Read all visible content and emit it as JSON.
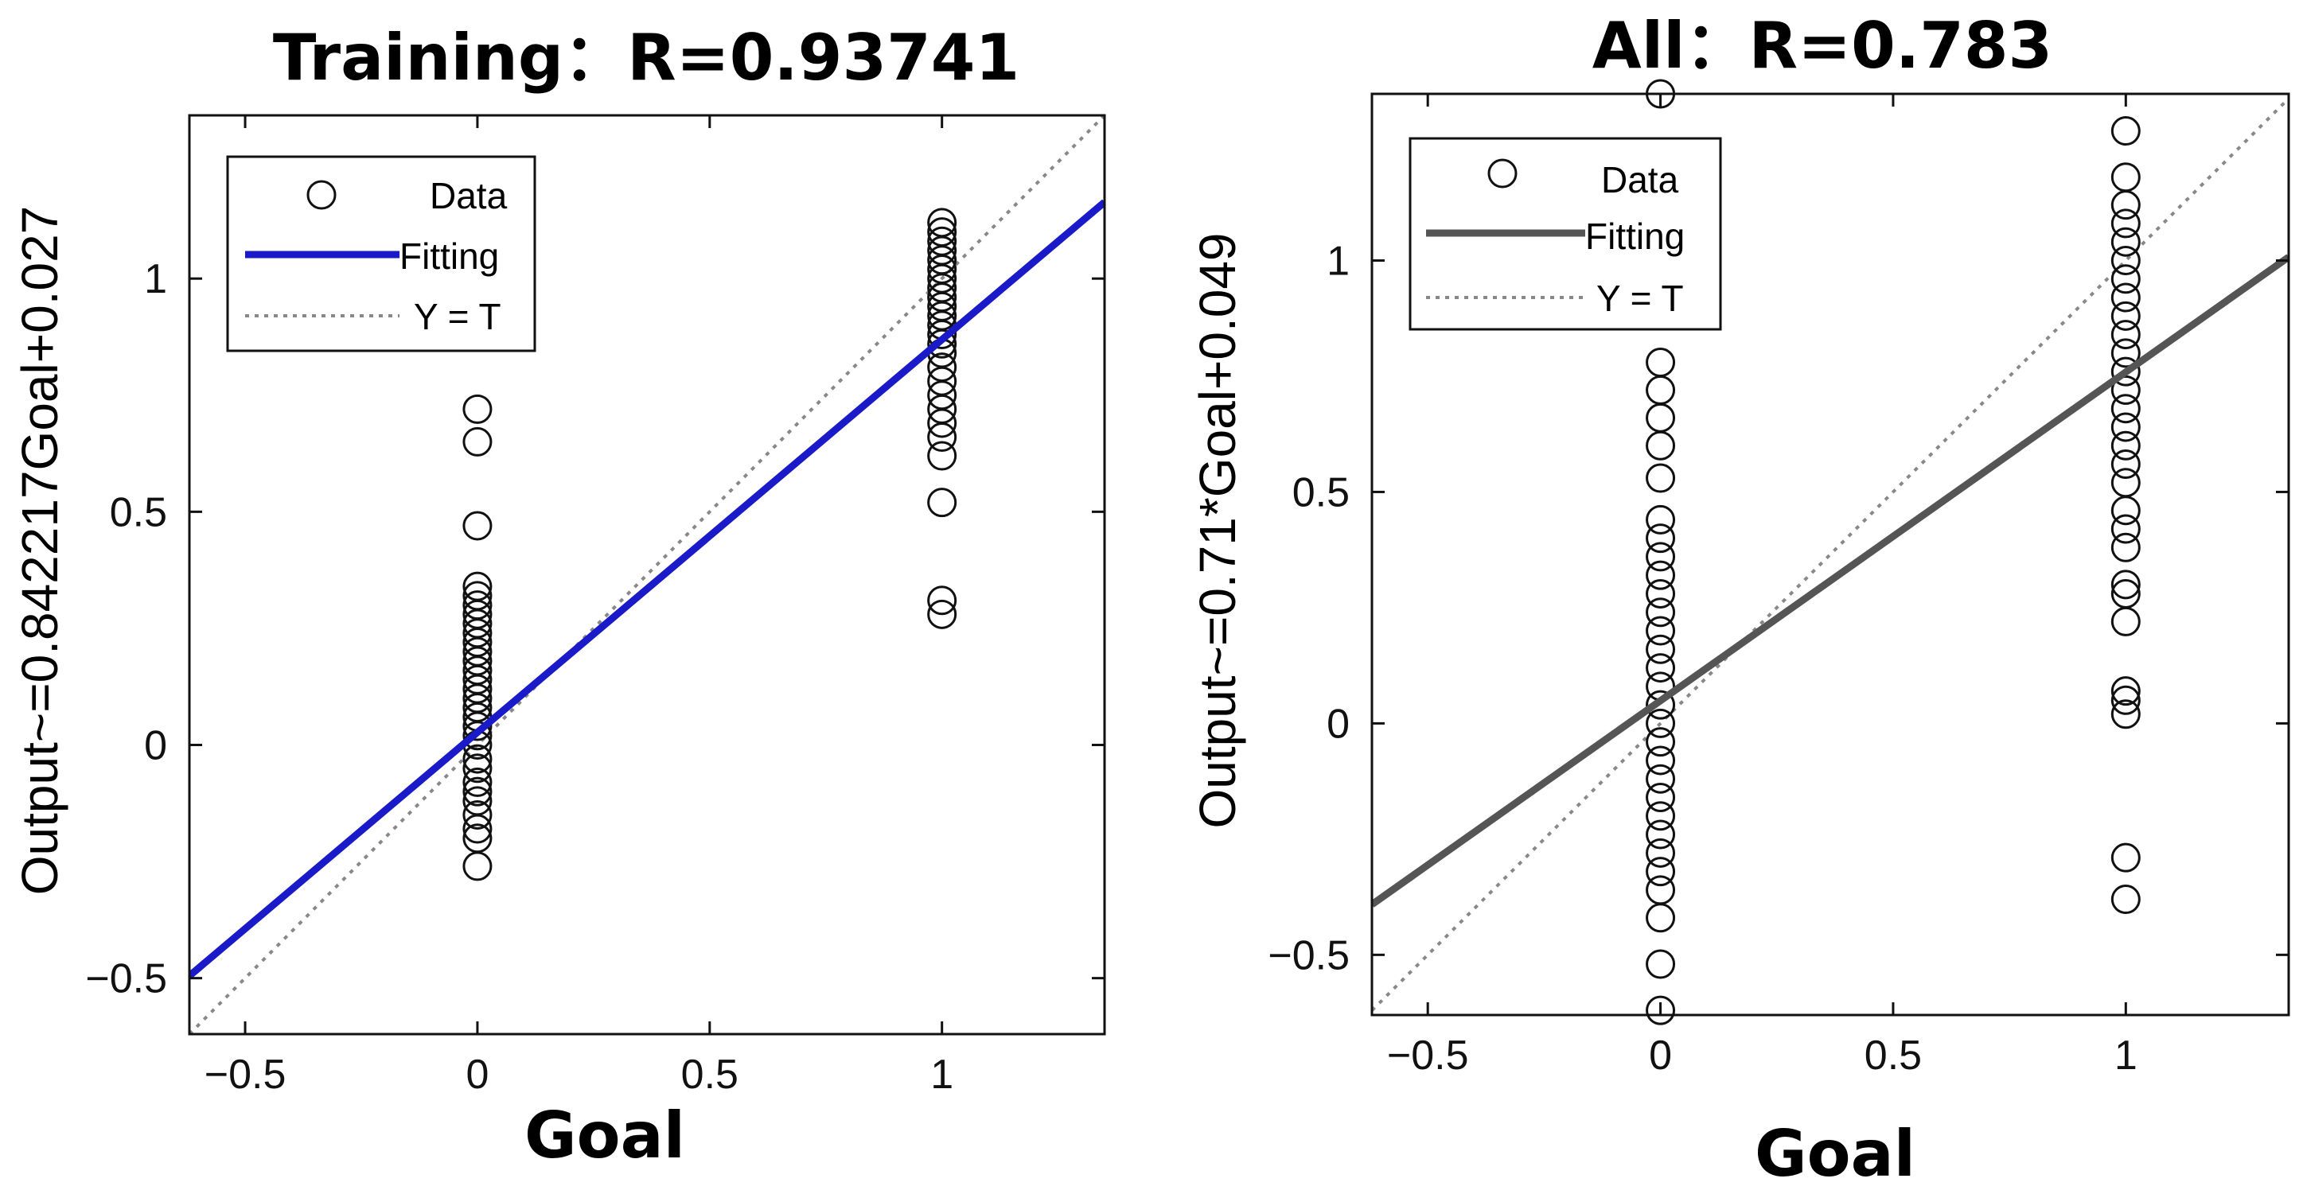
{
  "colors": {
    "background": "#ffffff",
    "axis": "#111111",
    "marker": "#111111",
    "fit_training": "#1a1ac8",
    "fit_all": "#555555",
    "identity": "#888888"
  },
  "chart_data": [
    {
      "type": "scatter",
      "title": "Training：R=0.93741",
      "xlabel": "Goal",
      "ylabel": "Output~=0.842217Goal+0.027",
      "xlim": [
        -0.62,
        1.35
      ],
      "ylim": [
        -0.62,
        1.35
      ],
      "xticks": [
        -0.5,
        0,
        0.5,
        1
      ],
      "yticks": [
        -0.5,
        0,
        0.5,
        1
      ],
      "xtick_labels": [
        "−0.5",
        "0",
        "0.5",
        "1"
      ],
      "ytick_labels": [
        "−0.5",
        "0",
        "0.5",
        "1"
      ],
      "grid": false,
      "legend": {
        "placement": "top-left",
        "entries": [
          {
            "label": "Data",
            "style": "circle-marker"
          },
          {
            "label": "Fitting",
            "style": "solid-line"
          },
          {
            "label": "Y = T",
            "style": "dotted-line"
          }
        ]
      },
      "fit": {
        "slope": 0.842217,
        "intercept": 0.027
      },
      "series": [
        {
          "name": "Data",
          "x": 0,
          "y": [
            -0.26,
            -0.2,
            -0.18,
            -0.15,
            -0.12,
            -0.1,
            -0.08,
            -0.05,
            -0.03,
            0.0,
            0.02,
            0.04,
            0.06,
            0.08,
            0.1,
            0.12,
            0.14,
            0.16,
            0.18,
            0.2,
            0.22,
            0.24,
            0.26,
            0.28,
            0.3,
            0.32,
            0.34,
            0.47,
            0.65,
            0.72
          ]
        },
        {
          "name": "Data",
          "x": 1,
          "y": [
            0.28,
            0.31,
            0.52,
            0.62,
            0.66,
            0.69,
            0.72,
            0.75,
            0.78,
            0.81,
            0.84,
            0.86,
            0.88,
            0.9,
            0.92,
            0.94,
            0.96,
            0.98,
            1.0,
            1.02,
            1.04,
            1.06,
            1.08,
            1.1,
            1.12
          ]
        }
      ]
    },
    {
      "type": "scatter",
      "title": "All：R=0.783",
      "xlabel": "Goal",
      "ylabel": "Output~=0.71*Goal+0.049",
      "xlim": [
        -0.62,
        1.35
      ],
      "ylim": [
        -0.63,
        1.36
      ],
      "xticks": [
        -0.5,
        0,
        0.5,
        1
      ],
      "yticks": [
        -0.5,
        0,
        0.5,
        1
      ],
      "xtick_labels": [
        "−0.5",
        "0",
        "0.5",
        "1"
      ],
      "ytick_labels": [
        "−0.5",
        "0",
        "0.5",
        "1"
      ],
      "grid": false,
      "legend": {
        "placement": "top-left",
        "entries": [
          {
            "label": "Data",
            "style": "circle-marker"
          },
          {
            "label": "Fitting",
            "style": "solid-line"
          },
          {
            "label": "Y = T",
            "style": "dotted-line"
          }
        ]
      },
      "fit": {
        "slope": 0.71,
        "intercept": 0.049
      },
      "series": [
        {
          "name": "Data",
          "x": 0,
          "y": [
            -0.62,
            -0.52,
            -0.42,
            -0.36,
            -0.32,
            -0.28,
            -0.24,
            -0.2,
            -0.16,
            -0.12,
            -0.08,
            -0.04,
            0.0,
            0.04,
            0.08,
            0.12,
            0.16,
            0.2,
            0.24,
            0.28,
            0.32,
            0.36,
            0.4,
            0.44,
            0.53,
            0.6,
            0.66,
            0.72,
            0.78
          ]
        },
        {
          "name": "Data",
          "x": 1,
          "y": [
            -0.38,
            -0.29,
            0.02,
            0.05,
            0.07,
            0.22,
            0.28,
            0.3,
            0.38,
            0.42,
            0.46,
            0.52,
            0.56,
            0.6,
            0.64,
            0.68,
            0.72,
            0.76,
            0.8,
            0.84,
            0.88,
            0.92,
            0.96,
            1.0,
            1.04,
            1.08,
            1.12,
            1.18,
            1.28
          ]
        },
        {
          "name": "Data",
          "x": 0,
          "y": [
            1.36
          ]
        }
      ]
    }
  ]
}
